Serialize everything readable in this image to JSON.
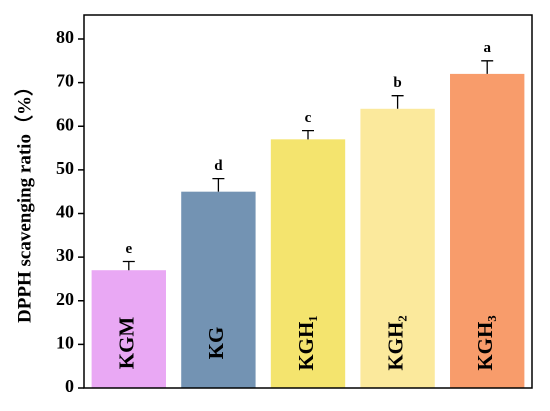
{
  "chart_data": {
    "type": "bar",
    "y_label": "DPPH scavenging ratio（%）",
    "categories": [
      "KGM",
      "KG",
      "KGH₁",
      "KGH₂",
      "KGH₃"
    ],
    "values": [
      27,
      45,
      57,
      64,
      72
    ],
    "errors": [
      2,
      3,
      2,
      3,
      3
    ],
    "significance_labels": [
      "e",
      "d",
      "c",
      "b",
      "a"
    ],
    "colors": [
      "#e9a8f4",
      "#7393b3",
      "#f4e46e",
      "#fbe99c",
      "#f89c6b"
    ],
    "ylim": [
      0,
      85.5
    ],
    "yticks": [
      0,
      10,
      20,
      30,
      40,
      50,
      60,
      70,
      80
    ]
  }
}
